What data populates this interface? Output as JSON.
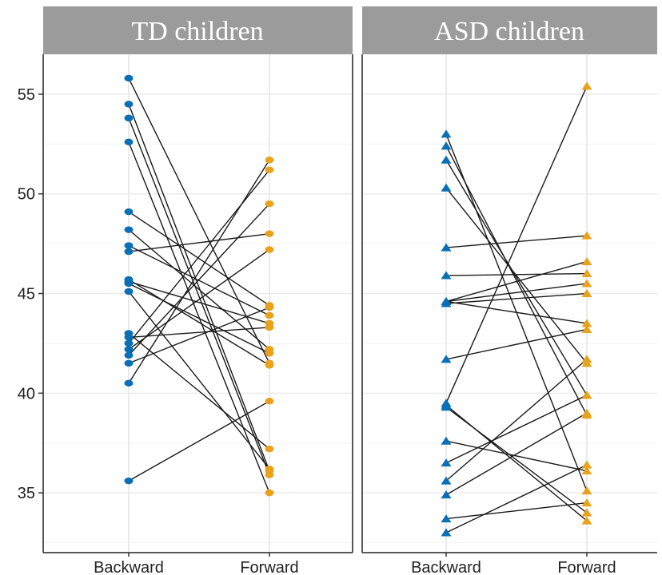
{
  "chart_data": {
    "type": "line",
    "panels": [
      {
        "title": "TD children",
        "marker": "circle",
        "pairs": [
          [
            55.8,
            41.5
          ],
          [
            54.5,
            36.1
          ],
          [
            53.8,
            35.9
          ],
          [
            52.6,
            35.0
          ],
          [
            49.1,
            44.4
          ],
          [
            48.2,
            42.2
          ],
          [
            47.4,
            43.9
          ],
          [
            47.1,
            48.0
          ],
          [
            45.7,
            41.4
          ],
          [
            45.6,
            43.5
          ],
          [
            45.5,
            42.0
          ],
          [
            45.1,
            36.2
          ],
          [
            43.0,
            37.2
          ],
          [
            42.8,
            43.3
          ],
          [
            42.2,
            47.2
          ],
          [
            41.9,
            49.5
          ],
          [
            41.5,
            44.3
          ],
          [
            40.5,
            51.7
          ],
          [
            42.5,
            51.2
          ],
          [
            35.6,
            39.6
          ]
        ]
      },
      {
        "title": "ASD children",
        "marker": "triangle",
        "pairs": [
          [
            53.0,
            35.1
          ],
          [
            52.4,
            38.9
          ],
          [
            51.7,
            39.9
          ],
          [
            50.3,
            41.5
          ],
          [
            47.3,
            47.9
          ],
          [
            45.9,
            46.0
          ],
          [
            44.6,
            46.6
          ],
          [
            44.6,
            45.5
          ],
          [
            44.5,
            45.0
          ],
          [
            44.6,
            43.5
          ],
          [
            41.7,
            43.2
          ],
          [
            39.5,
            55.4
          ],
          [
            39.4,
            33.6
          ],
          [
            39.3,
            34.0
          ],
          [
            37.6,
            36.1
          ],
          [
            36.5,
            39.9
          ],
          [
            35.6,
            41.7
          ],
          [
            34.9,
            39.0
          ],
          [
            33.7,
            34.5
          ],
          [
            33.0,
            36.4
          ]
        ]
      }
    ],
    "categories": [
      "Backward",
      "Forward"
    ],
    "y_ticks": [
      35,
      40,
      45,
      50,
      55
    ],
    "ylim": [
      32,
      57
    ],
    "colors": {
      "Backward": "#0a6fb5",
      "Forward": "#e8a21b",
      "line": "#1a1a1a",
      "strip": "#9b9b9b",
      "grid": "#ebebeb"
    },
    "grid": true
  }
}
